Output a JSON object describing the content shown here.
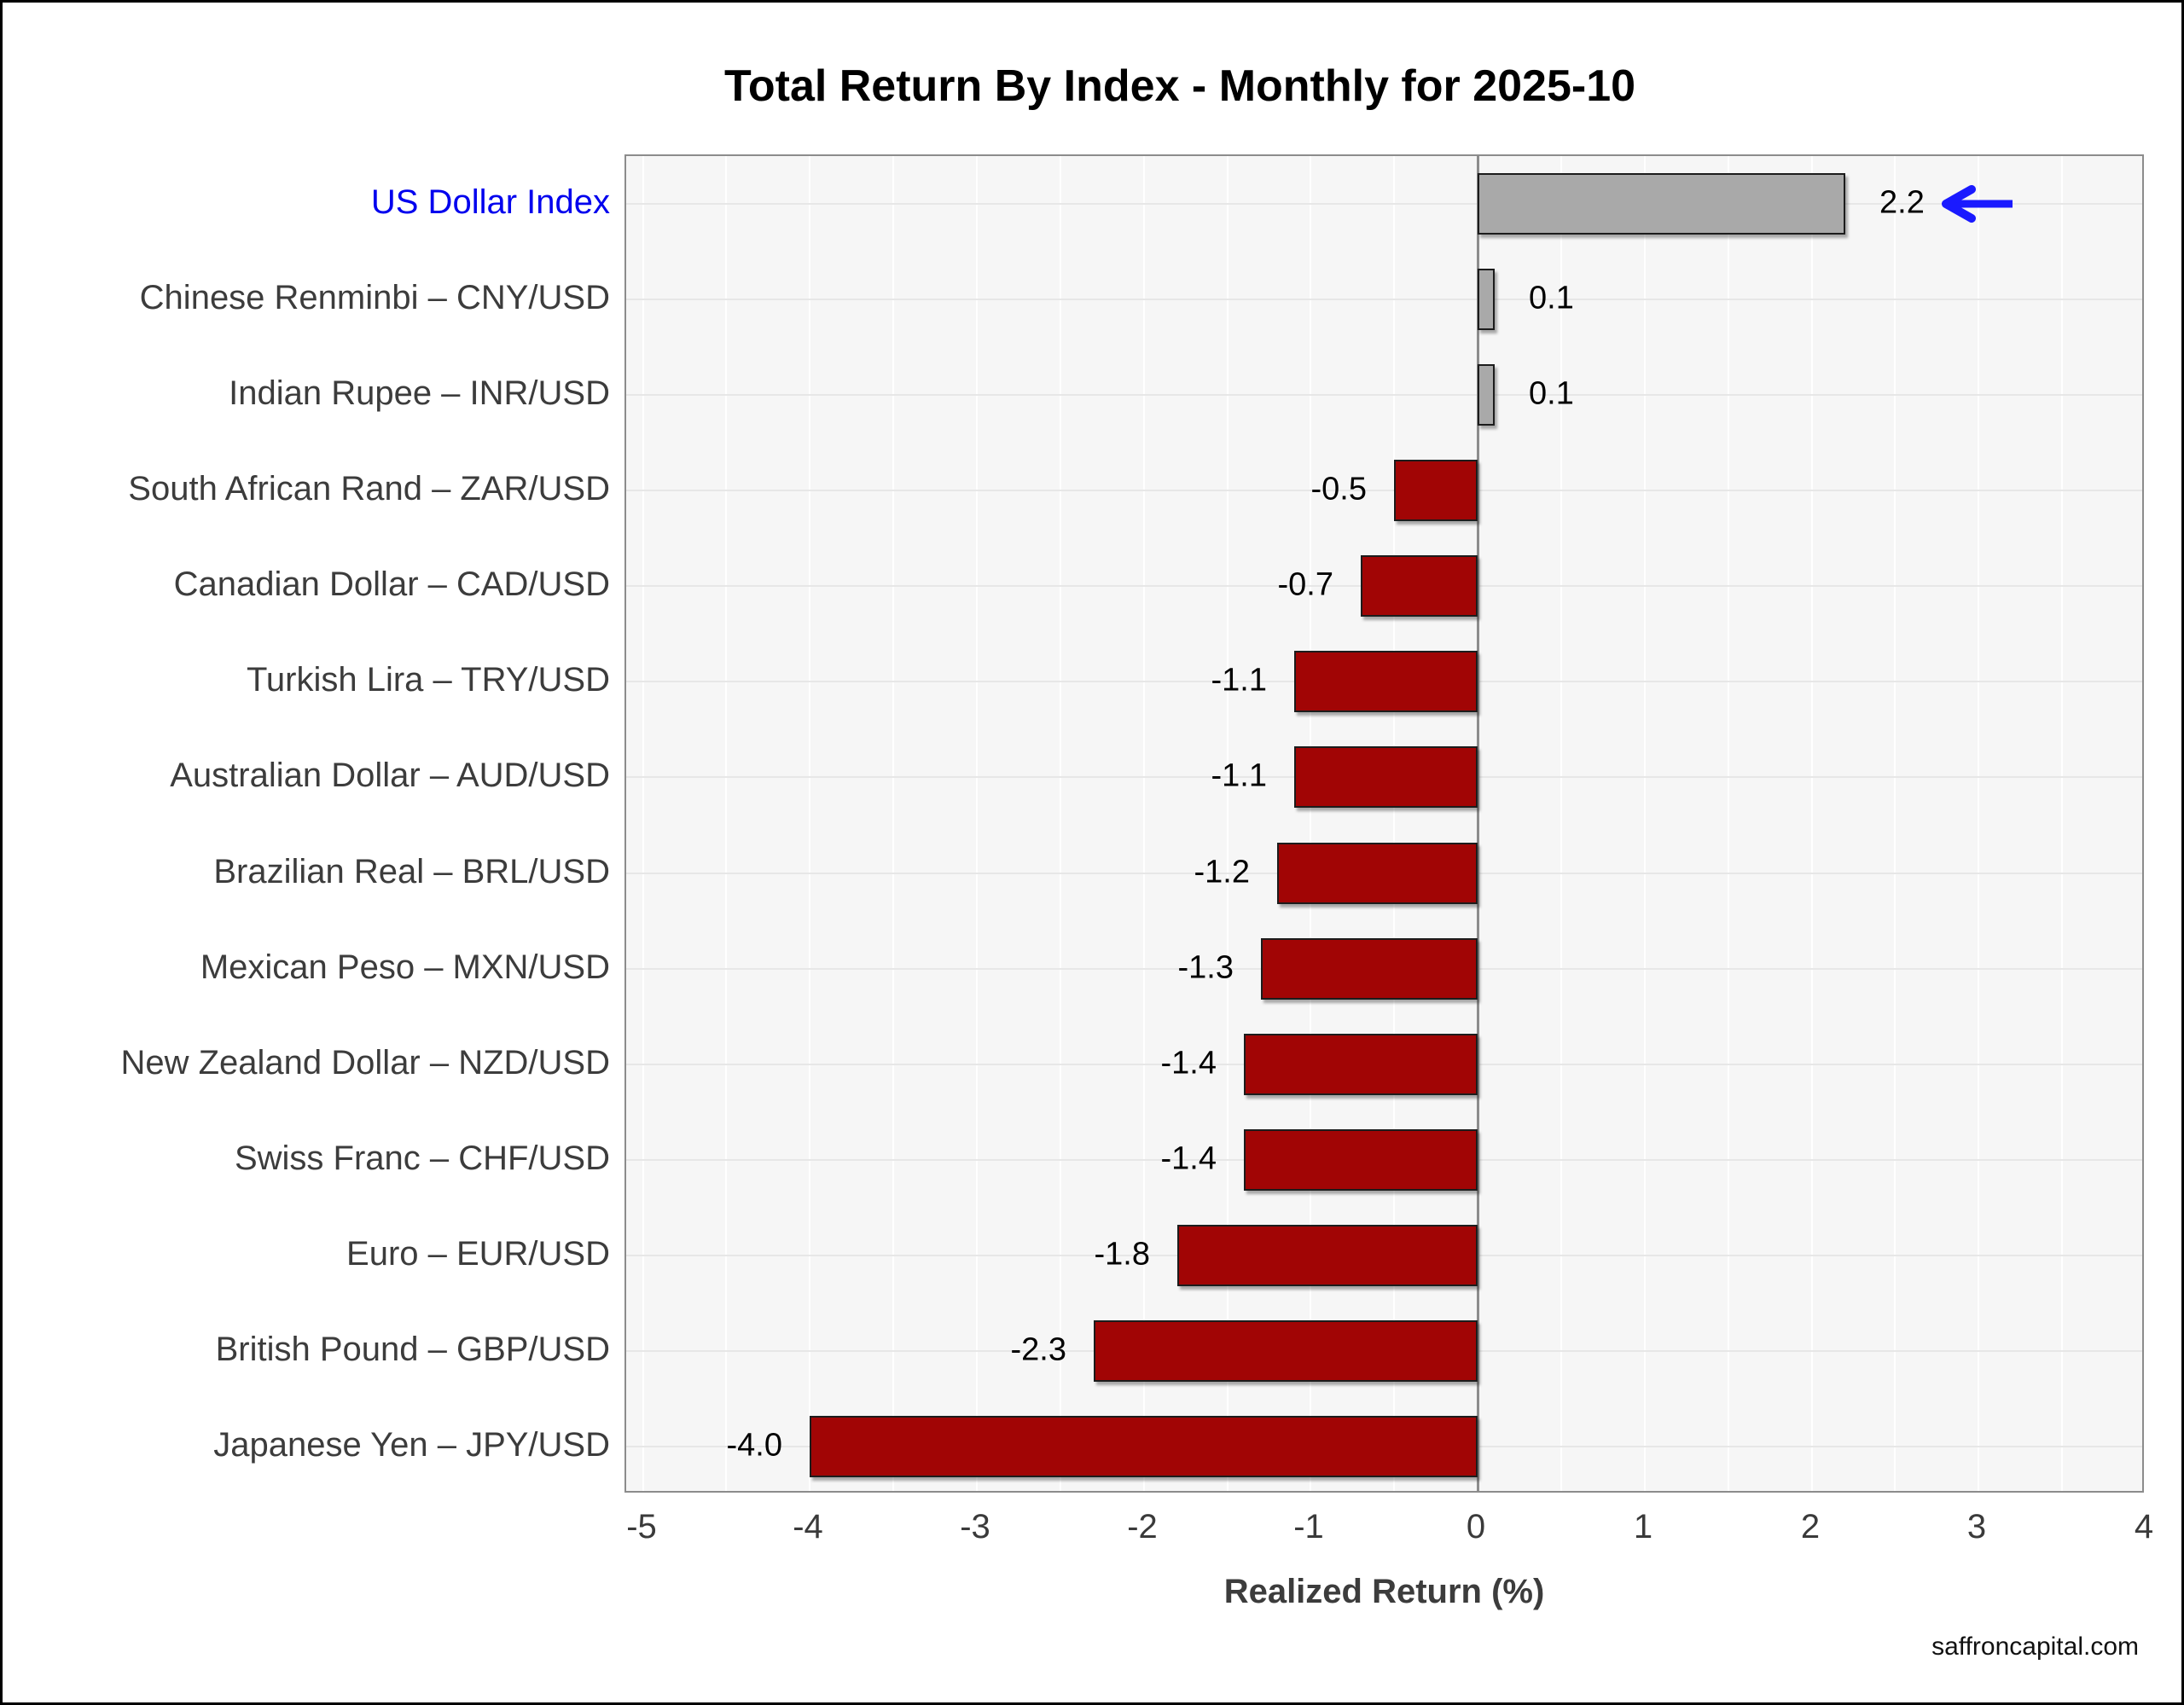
{
  "page": {
    "title": "Total Return By Index - Monthly for 2025-10",
    "footer": "saffroncapital.com"
  },
  "chart_data": {
    "type": "bar",
    "orientation": "horizontal",
    "title": "Total Return By Index - Monthly for 2025-10",
    "xlabel": "Realized Return (%)",
    "xlim": [
      -5.1,
      4.0
    ],
    "xticks": [
      -5,
      -4,
      -3,
      -2,
      -1,
      0,
      1,
      2,
      3,
      4
    ],
    "grid": "vertical gridlines every 0.5 units, horizontal gridline at each category center",
    "legend_position": "none",
    "categories": [
      "US Dollar Index",
      "Chinese Renminbi – CNY/USD",
      "Indian Rupee – INR/USD",
      "South African Rand – ZAR/USD",
      "Canadian Dollar – CAD/USD",
      "Turkish Lira – TRY/USD",
      "Australian Dollar – AUD/USD",
      "Brazilian Real – BRL/USD",
      "Mexican Peso – MXN/USD",
      "New Zealand Dollar – NZD/USD",
      "Swiss Franc – CHF/USD",
      "Euro – EUR/USD",
      "British Pound – GBP/USD",
      "Japanese Yen – JPY/USD"
    ],
    "values": [
      2.2,
      0.1,
      0.1,
      -0.5,
      -0.7,
      -1.1,
      -1.1,
      -1.2,
      -1.3,
      -1.4,
      -1.4,
      -1.8,
      -2.3,
      -4.0
    ],
    "value_labels": [
      "2.2",
      "0.1",
      "0.1",
      "-0.5",
      "-0.7",
      "-1.1",
      "-1.1",
      "-1.2",
      "-1.3",
      "-1.4",
      "-1.4",
      "-1.8",
      "-2.3",
      "-4.0"
    ],
    "highlight": {
      "category": "US Dollar Index",
      "row_index": 0,
      "label_color": "#0000EE",
      "arrow": "blue left-pointing arrow after value label",
      "arrow_color": "#1A1AFF"
    },
    "colors": {
      "positive_bar": "#A9A9A9",
      "negative_bar": "#A10505",
      "bar_border": "#1C1C1C",
      "category_label": "#3C3C3C",
      "tick_label": "#3A3A3A",
      "value_label": "#000000",
      "axis_label": "#3C3C3C",
      "plot_background": "#F6F6F6",
      "grid_vertical": "#FFFFFF",
      "grid_horizontal": "#E7E7E7",
      "zero_line": "#8C8C8C",
      "spine": "#8C8C8C",
      "title": "#000000"
    }
  }
}
